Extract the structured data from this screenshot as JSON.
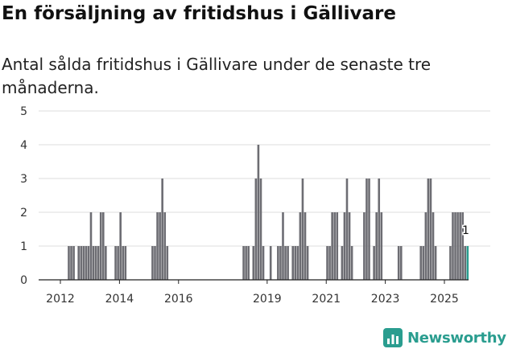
{
  "title": "En försäljning av fritidshus i Gällivare",
  "subtitle": "Antal sålda fritidshus i Gällivare under de senaste tre månaderna.",
  "brand": "Newsworthy",
  "colors": {
    "bar": "#6d6d73",
    "highlight": "#2a9d8f",
    "grid": "#dddddd",
    "axis": "#222222"
  },
  "chart_data": {
    "type": "bar",
    "title": "En försäljning av fritidshus i Gällivare",
    "xlabel": "",
    "ylabel": "",
    "ylim": [
      0,
      5
    ],
    "yticks": [
      "0",
      "1",
      "2",
      "3",
      "4",
      "5"
    ],
    "xticks": [
      {
        "label": "2012",
        "year": 2012
      },
      {
        "label": "2014",
        "year": 2014
      },
      {
        "label": "2016",
        "year": 2016
      },
      {
        "label": "2019",
        "year": 2019
      },
      {
        "label": "2021",
        "year": 2021
      },
      {
        "label": "2023",
        "year": 2023
      },
      {
        "label": "2025",
        "year": 2025
      }
    ],
    "annotation": {
      "text": "1",
      "period": "2025-10",
      "value": 1
    },
    "series": [
      {
        "period": "2012-04",
        "value": 1
      },
      {
        "period": "2012-05",
        "value": 1
      },
      {
        "period": "2012-06",
        "value": 1
      },
      {
        "period": "2012-08",
        "value": 1
      },
      {
        "period": "2012-09",
        "value": 1
      },
      {
        "period": "2012-10",
        "value": 1
      },
      {
        "period": "2012-11",
        "value": 1
      },
      {
        "period": "2012-12",
        "value": 1
      },
      {
        "period": "2013-01",
        "value": 2
      },
      {
        "period": "2013-02",
        "value": 1
      },
      {
        "period": "2013-03",
        "value": 1
      },
      {
        "period": "2013-04",
        "value": 1
      },
      {
        "period": "2013-05",
        "value": 2
      },
      {
        "period": "2013-06",
        "value": 2
      },
      {
        "period": "2013-07",
        "value": 1
      },
      {
        "period": "2013-11",
        "value": 1
      },
      {
        "period": "2013-12",
        "value": 1
      },
      {
        "period": "2014-01",
        "value": 2
      },
      {
        "period": "2014-02",
        "value": 1
      },
      {
        "period": "2014-03",
        "value": 1
      },
      {
        "period": "2015-02",
        "value": 1
      },
      {
        "period": "2015-03",
        "value": 1
      },
      {
        "period": "2015-04",
        "value": 2
      },
      {
        "period": "2015-05",
        "value": 2
      },
      {
        "period": "2015-06",
        "value": 3
      },
      {
        "period": "2015-07",
        "value": 2
      },
      {
        "period": "2015-08",
        "value": 1
      },
      {
        "period": "2018-03",
        "value": 1
      },
      {
        "period": "2018-04",
        "value": 1
      },
      {
        "period": "2018-05",
        "value": 1
      },
      {
        "period": "2018-07",
        "value": 1
      },
      {
        "period": "2018-08",
        "value": 3
      },
      {
        "period": "2018-09",
        "value": 4
      },
      {
        "period": "2018-10",
        "value": 3
      },
      {
        "period": "2018-11",
        "value": 1
      },
      {
        "period": "2019-02",
        "value": 1
      },
      {
        "period": "2019-05",
        "value": 1
      },
      {
        "period": "2019-06",
        "value": 1
      },
      {
        "period": "2019-07",
        "value": 2
      },
      {
        "period": "2019-08",
        "value": 1
      },
      {
        "period": "2019-09",
        "value": 1
      },
      {
        "period": "2019-11",
        "value": 1
      },
      {
        "period": "2019-12",
        "value": 1
      },
      {
        "period": "2020-01",
        "value": 1
      },
      {
        "period": "2020-02",
        "value": 2
      },
      {
        "period": "2020-03",
        "value": 3
      },
      {
        "period": "2020-04",
        "value": 2
      },
      {
        "period": "2020-05",
        "value": 1
      },
      {
        "period": "2021-01",
        "value": 1
      },
      {
        "period": "2021-02",
        "value": 1
      },
      {
        "period": "2021-03",
        "value": 2
      },
      {
        "period": "2021-04",
        "value": 2
      },
      {
        "period": "2021-05",
        "value": 2
      },
      {
        "period": "2021-07",
        "value": 1
      },
      {
        "period": "2021-08",
        "value": 2
      },
      {
        "period": "2021-09",
        "value": 3
      },
      {
        "period": "2021-10",
        "value": 2
      },
      {
        "period": "2021-11",
        "value": 1
      },
      {
        "period": "2022-04",
        "value": 2
      },
      {
        "period": "2022-05",
        "value": 3
      },
      {
        "period": "2022-06",
        "value": 3
      },
      {
        "period": "2022-08",
        "value": 1
      },
      {
        "period": "2022-09",
        "value": 2
      },
      {
        "period": "2022-10",
        "value": 3
      },
      {
        "period": "2022-11",
        "value": 2
      },
      {
        "period": "2023-06",
        "value": 1
      },
      {
        "period": "2023-07",
        "value": 1
      },
      {
        "period": "2024-03",
        "value": 1
      },
      {
        "period": "2024-04",
        "value": 1
      },
      {
        "period": "2024-05",
        "value": 2
      },
      {
        "period": "2024-06",
        "value": 3
      },
      {
        "period": "2024-07",
        "value": 3
      },
      {
        "period": "2024-08",
        "value": 2
      },
      {
        "period": "2024-09",
        "value": 1
      },
      {
        "period": "2025-03",
        "value": 1
      },
      {
        "period": "2025-04",
        "value": 2
      },
      {
        "period": "2025-05",
        "value": 2
      },
      {
        "period": "2025-06",
        "value": 2
      },
      {
        "period": "2025-07",
        "value": 2
      },
      {
        "period": "2025-08",
        "value": 2
      },
      {
        "period": "2025-09",
        "value": 1
      },
      {
        "period": "2025-10",
        "value": 1
      }
    ]
  }
}
